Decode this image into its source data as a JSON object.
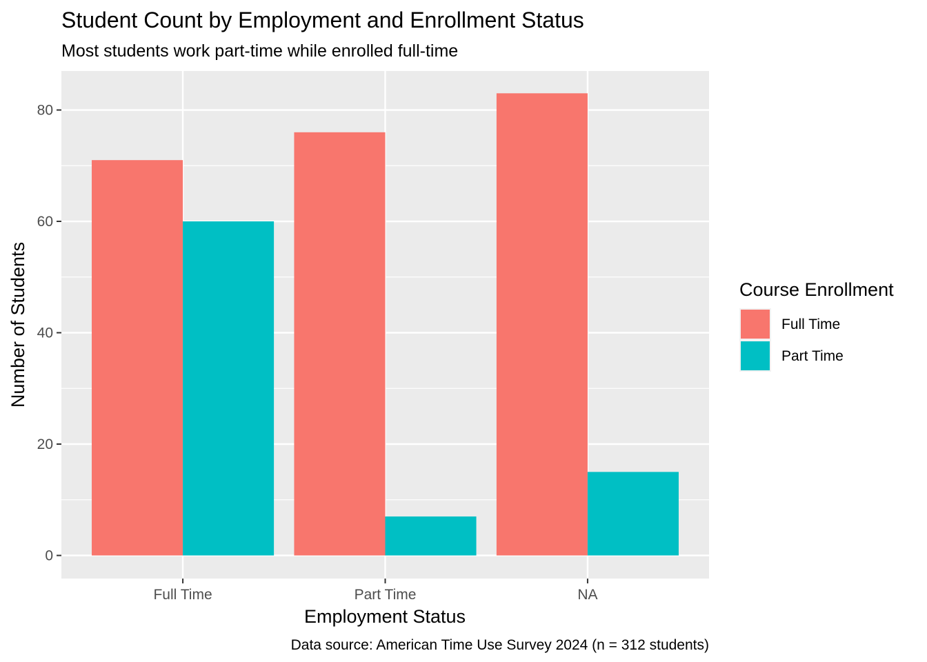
{
  "chart_data": {
    "type": "bar",
    "title": "Student Count by Employment and Enrollment Status",
    "subtitle": "Most students work part-time while enrolled full-time",
    "xlabel": "Employment Status",
    "ylabel": "Number of Students",
    "caption": "Data source: American Time Use Survey 2024 (n = 312 students)",
    "categories": [
      "Full Time",
      "Part Time",
      "NA"
    ],
    "series": [
      {
        "name": "Full Time",
        "values": [
          71,
          76,
          83
        ],
        "color": "#F8766D"
      },
      {
        "name": "Part Time",
        "values": [
          60,
          7,
          15
        ],
        "color": "#00BFC4"
      }
    ],
    "ylim": [
      0,
      87
    ],
    "yticks": [
      0,
      20,
      40,
      60,
      80
    ],
    "grid": true,
    "legend_title": "Course Enrollment",
    "legend_position": "right",
    "panel_background": "#EBEBEB",
    "grid_color": "#FFFFFF"
  }
}
